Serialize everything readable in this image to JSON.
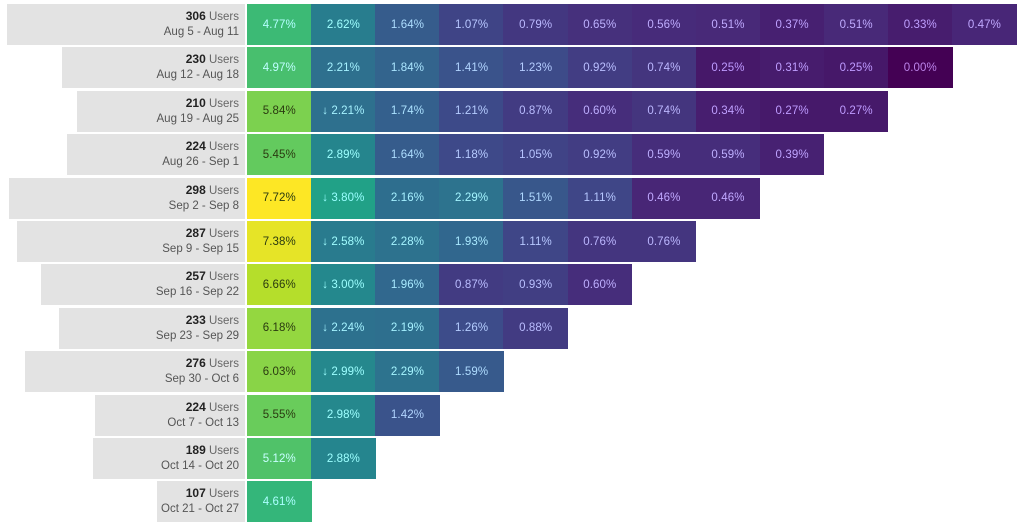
{
  "colors": {
    "label_bg": "#e3e3e3",
    "scale": [
      "#440154",
      "#482878",
      "#3e4989",
      "#31688e",
      "#26828e",
      "#1f9e89",
      "#35b779",
      "#6ece58",
      "#b5de2b",
      "#fde725"
    ]
  },
  "chart_data": {
    "type": "heatmap",
    "title": "",
    "unit_label": "Users",
    "drop_marker": "↓",
    "cohorts": [
      {
        "users": 306,
        "range": "Aug 5 - Aug 11",
        "values": [
          4.77,
          2.62,
          1.64,
          1.07,
          0.79,
          0.65,
          0.56,
          0.51,
          0.37,
          0.51,
          0.33,
          0.47
        ],
        "display": [
          "4.77%",
          "2.62%",
          "1.64%",
          "1.07%",
          "0.79%",
          "0.65%",
          "0.56%",
          "0.51%",
          "0.37%",
          "0.51%",
          "0.33%",
          "0.47%"
        ]
      },
      {
        "users": 230,
        "range": "Aug 12 - Aug 18",
        "values": [
          4.97,
          2.21,
          1.84,
          1.41,
          1.23,
          0.92,
          0.74,
          0.25,
          0.31,
          0.25,
          0.0
        ],
        "display": [
          "4.97%",
          "2.21%",
          "1.84%",
          "1.41%",
          "1.23%",
          "0.92%",
          "0.74%",
          "0.25%",
          "0.31%",
          "0.25%",
          "0.00%"
        ]
      },
      {
        "users": 210,
        "range": "Aug 19 - Aug 25",
        "values": [
          5.84,
          2.21,
          1.74,
          1.21,
          0.87,
          0.6,
          0.74,
          0.34,
          0.27,
          0.27
        ],
        "display": [
          "5.84%",
          "↓ 2.21%",
          "1.74%",
          "1.21%",
          "0.87%",
          "0.60%",
          "0.74%",
          "0.34%",
          "0.27%",
          "0.27%"
        ]
      },
      {
        "users": 224,
        "range": "Aug 26 - Sep 1",
        "values": [
          5.45,
          2.89,
          1.64,
          1.18,
          1.05,
          0.92,
          0.59,
          0.59,
          0.39
        ],
        "display": [
          "5.45%",
          "2.89%",
          "1.64%",
          "1.18%",
          "1.05%",
          "0.92%",
          "0.59%",
          "0.59%",
          "0.39%"
        ]
      },
      {
        "users": 298,
        "range": "Sep 2 - Sep 8",
        "values": [
          7.72,
          3.8,
          2.16,
          2.29,
          1.51,
          1.11,
          0.46,
          0.46
        ],
        "display": [
          "7.72%",
          "↓ 3.80%",
          "2.16%",
          "2.29%",
          "1.51%",
          "1.11%",
          "0.46%",
          "0.46%"
        ]
      },
      {
        "users": 287,
        "range": "Sep 9 - Sep 15",
        "values": [
          7.38,
          2.58,
          2.28,
          1.93,
          1.11,
          0.76,
          0.76
        ],
        "display": [
          "7.38%",
          "↓ 2.58%",
          "2.28%",
          "1.93%",
          "1.11%",
          "0.76%",
          "0.76%"
        ]
      },
      {
        "users": 257,
        "range": "Sep 16 - Sep 22",
        "values": [
          6.66,
          3.0,
          1.96,
          0.87,
          0.93,
          0.6
        ],
        "display": [
          "6.66%",
          "↓ 3.00%",
          "1.96%",
          "0.87%",
          "0.93%",
          "0.60%"
        ]
      },
      {
        "users": 233,
        "range": "Sep 23 - Sep 29",
        "values": [
          6.18,
          2.24,
          2.19,
          1.26,
          0.88
        ],
        "display": [
          "6.18%",
          "↓ 2.24%",
          "2.19%",
          "1.26%",
          "0.88%"
        ]
      },
      {
        "users": 276,
        "range": "Sep 30 - Oct 6",
        "values": [
          6.03,
          2.99,
          2.29,
          1.59
        ],
        "display": [
          "6.03%",
          "↓ 2.99%",
          "2.29%",
          "1.59%"
        ]
      },
      {
        "users": 224,
        "range": "Oct 7 - Oct 13",
        "values": [
          5.55,
          2.98,
          1.42
        ],
        "display": [
          "5.55%",
          "2.98%",
          "1.42%"
        ]
      },
      {
        "users": 189,
        "range": "Oct 14 - Oct 20",
        "values": [
          5.12,
          2.88
        ],
        "display": [
          "5.12%",
          "2.88%"
        ]
      },
      {
        "users": 107,
        "range": "Oct 21 - Oct 27",
        "values": [
          4.61
        ],
        "display": [
          "4.61%"
        ]
      }
    ]
  }
}
